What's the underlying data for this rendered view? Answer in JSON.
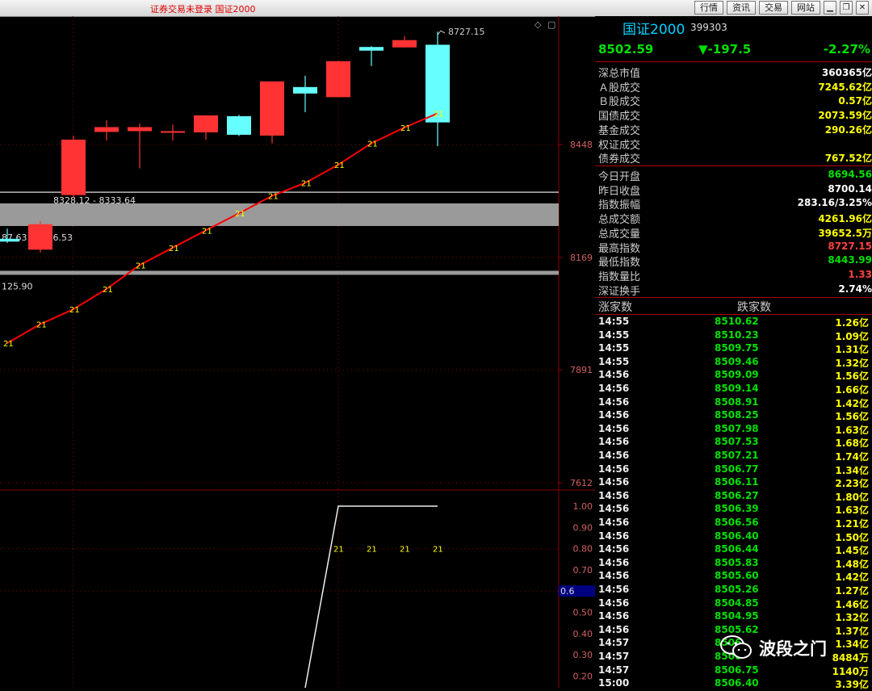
{
  "title_bar": {
    "title": "证券交易未登录  国证2000",
    "buttons": [
      "行情",
      "资讯",
      "交易",
      "网站"
    ],
    "window_buttons": [
      "minimize",
      "restore",
      "close"
    ]
  },
  "colors": {
    "up": "#ff3333",
    "down": "#66ffff",
    "ma": "#ff0000",
    "grid": "#8b0000",
    "label": "#ffff00"
  },
  "chart_data": {
    "type": "candlestick",
    "main_axis_ticks": [
      "8448",
      "8169",
      "7891",
      "7612"
    ],
    "sub_axis_ticks": [
      "1.00",
      "0.90",
      "0.80",
      "0.70",
      "0.50",
      "0.40",
      "0.30",
      "0.20"
    ],
    "sub_current_value": "0.6",
    "high_marker": "8727.15",
    "ranges": [
      "8328.12 - 8333.64",
      "87.63 - 8246.53",
      "125.90"
    ],
    "candles": [
      {
        "open": 8215,
        "close": 8208,
        "high": 8240,
        "low": 8205
      },
      {
        "open": 8188,
        "close": 8251,
        "high": 8259,
        "low": 8181
      },
      {
        "open": 8323,
        "close": 8460,
        "high": 8470,
        "low": 8317
      },
      {
        "open": 8479,
        "close": 8491,
        "high": 8508,
        "low": 8458
      },
      {
        "open": 8481,
        "close": 8491,
        "high": 8500,
        "low": 8389
      },
      {
        "open": 8480,
        "close": 8481,
        "high": 8497,
        "low": 8458
      },
      {
        "open": 8478,
        "close": 8520,
        "high": 8520,
        "low": 8460
      },
      {
        "open": 8518,
        "close": 8472,
        "high": 8521,
        "low": 8469
      },
      {
        "open": 8470,
        "close": 8604,
        "high": 8604,
        "low": 8451
      },
      {
        "open": 8590,
        "close": 8574,
        "high": 8618,
        "low": 8528
      },
      {
        "open": 8565,
        "close": 8654,
        "high": 8654,
        "low": 8565
      },
      {
        "open": 8689,
        "close": 8680,
        "high": 8691,
        "low": 8642
      },
      {
        "open": 8688,
        "close": 8706,
        "high": 8716,
        "low": 8688
      },
      {
        "open": 8694.56,
        "close": 8502.59,
        "high": 8727.15,
        "low": 8443.99
      }
    ],
    "ma_label": "21",
    "ma_points": [
      [
        0,
        7957
      ],
      [
        1,
        8004
      ],
      [
        2,
        8041
      ],
      [
        3,
        8091
      ],
      [
        4,
        8150
      ],
      [
        5,
        8193
      ],
      [
        6,
        8236
      ],
      [
        7,
        8278
      ],
      [
        8,
        8321
      ],
      [
        9,
        8353
      ],
      [
        10,
        8398
      ],
      [
        11,
        8451
      ],
      [
        12,
        8490
      ],
      [
        13,
        8525
      ]
    ],
    "sub_values": [
      [
        9,
        0.0
      ],
      [
        10,
        1.0
      ],
      [
        11,
        1.0
      ],
      [
        12,
        1.0
      ],
      [
        13,
        1.0
      ]
    ],
    "sub_label_indices": [
      10,
      11,
      12,
      13
    ]
  },
  "quote": {
    "name": "国证2000",
    "code": "399303",
    "price": "8502.59",
    "change": "▼-197.5",
    "change_pct": "-2.27%"
  },
  "stats_group1": [
    {
      "label": "深总市值",
      "value": "360365亿",
      "color": "#ffffff"
    },
    {
      "label": "Ａ股成交",
      "value": "7245.62亿",
      "color": "#ffff00"
    },
    {
      "label": "Ｂ股成交",
      "value": "0.57亿",
      "color": "#ffff00"
    },
    {
      "label": "国债成交",
      "value": "2073.59亿",
      "color": "#ffff00"
    },
    {
      "label": "基金成交",
      "value": "290.26亿",
      "color": "#ffff00"
    },
    {
      "label": "权证成交",
      "value": "",
      "color": "#ffff00"
    },
    {
      "label": "债券成交",
      "value": "767.52亿",
      "color": "#ffff00"
    }
  ],
  "stats_group2": [
    {
      "label": "今日开盘",
      "value": "8694.56",
      "color": "#00e000"
    },
    {
      "label": "昨日收盘",
      "value": "8700.14",
      "color": "#ffffff"
    },
    {
      "label": "指数振幅",
      "value": "283.16/3.25%",
      "color": "#ffffff"
    },
    {
      "label": "总成交额",
      "value": "4261.96亿",
      "color": "#ffff00"
    },
    {
      "label": "总成交量",
      "value": "39652.5万",
      "color": "#ffff00"
    },
    {
      "label": "最高指数",
      "value": "8727.15",
      "color": "#ff4040"
    },
    {
      "label": "最低指数",
      "value": "8443.99",
      "color": "#00e000"
    },
    {
      "label": "指数量比",
      "value": "1.33",
      "color": "#ff4040"
    },
    {
      "label": "深证换手",
      "value": "2.74%",
      "color": "#ffffff"
    }
  ],
  "breadth": {
    "up_label": "涨家数",
    "down_label": "跌家数"
  },
  "ticks": [
    {
      "time": "14:55",
      "price": "8510.62",
      "vol": "1.26亿"
    },
    {
      "time": "14:55",
      "price": "8510.23",
      "vol": "1.09亿"
    },
    {
      "time": "14:55",
      "price": "8509.75",
      "vol": "1.31亿"
    },
    {
      "time": "14:55",
      "price": "8509.46",
      "vol": "1.32亿"
    },
    {
      "time": "14:56",
      "price": "8509.09",
      "vol": "1.56亿"
    },
    {
      "time": "14:56",
      "price": "8509.14",
      "vol": "1.66亿"
    },
    {
      "time": "14:56",
      "price": "8508.91",
      "vol": "1.42亿"
    },
    {
      "time": "14:56",
      "price": "8508.25",
      "vol": "1.56亿"
    },
    {
      "time": "14:56",
      "price": "8507.98",
      "vol": "1.63亿"
    },
    {
      "time": "14:56",
      "price": "8507.53",
      "vol": "1.68亿"
    },
    {
      "time": "14:56",
      "price": "8507.21",
      "vol": "1.74亿"
    },
    {
      "time": "14:56",
      "price": "8506.77",
      "vol": "1.34亿"
    },
    {
      "time": "14:56",
      "price": "8506.11",
      "vol": "2.23亿"
    },
    {
      "time": "14:56",
      "price": "8506.27",
      "vol": "1.80亿"
    },
    {
      "time": "14:56",
      "price": "8506.39",
      "vol": "1.63亿"
    },
    {
      "time": "14:56",
      "price": "8506.56",
      "vol": "1.21亿"
    },
    {
      "time": "14:56",
      "price": "8506.40",
      "vol": "1.50亿"
    },
    {
      "time": "14:56",
      "price": "8506.44",
      "vol": "1.45亿"
    },
    {
      "time": "14:56",
      "price": "8505.83",
      "vol": "1.48亿"
    },
    {
      "time": "14:56",
      "price": "8505.60",
      "vol": "1.42亿"
    },
    {
      "time": "14:56",
      "price": "8505.26",
      "vol": "1.27亿"
    },
    {
      "time": "14:56",
      "price": "8504.85",
      "vol": "1.46亿"
    },
    {
      "time": "14:56",
      "price": "8504.95",
      "vol": "1.32亿"
    },
    {
      "time": "14:56",
      "price": "8505.62",
      "vol": "1.37亿"
    },
    {
      "time": "14:57",
      "price": "8506",
      "vol": "1.34亿"
    },
    {
      "time": "14:57",
      "price": "8506",
      "vol": "8484万"
    },
    {
      "time": "14:57",
      "price": "8506.75",
      "vol": "1140万"
    },
    {
      "time": "15:00",
      "price": "8506.40",
      "vol": "3.39亿"
    }
  ],
  "watermark": {
    "text": "波段之门"
  }
}
